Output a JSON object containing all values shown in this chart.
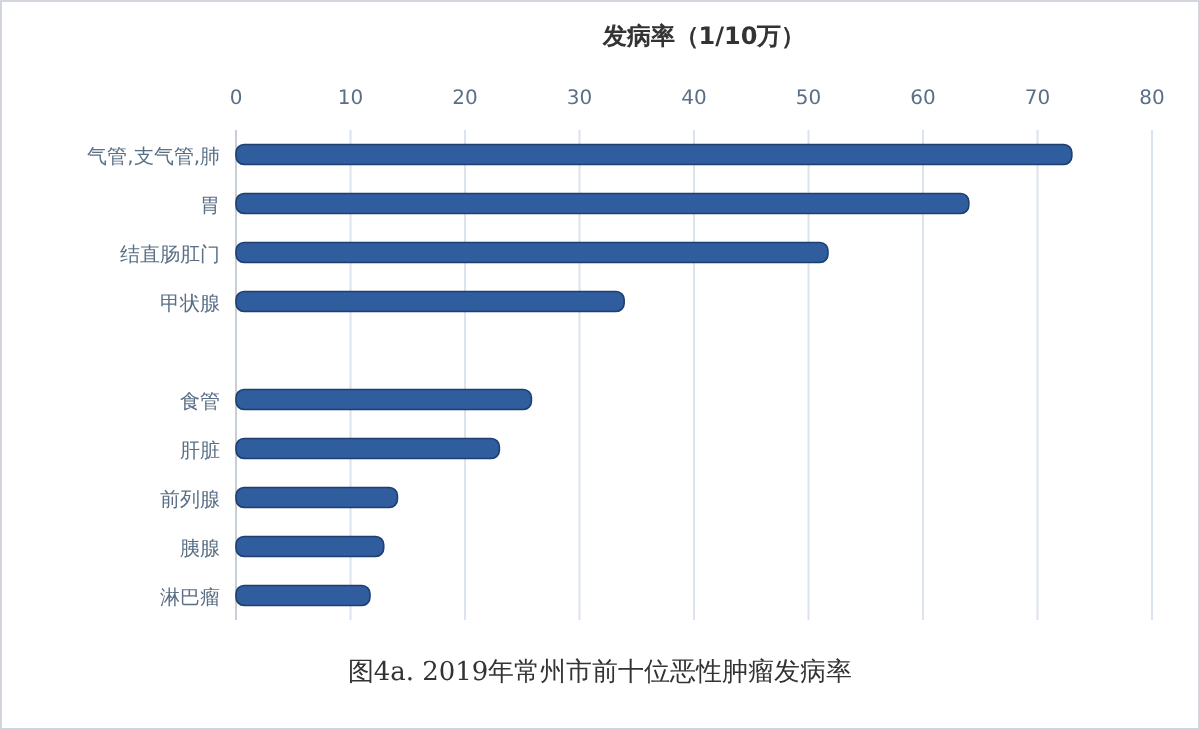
{
  "chart_data": {
    "type": "bar",
    "orientation": "horizontal",
    "xlabel": "发病率（1/10万）",
    "categories": [
      "气管,支气管,肺",
      "胃",
      "结直肠肛门",
      "甲状腺",
      null,
      "食管",
      "肝脏",
      "前列腺",
      "胰腺",
      "淋巴瘤"
    ],
    "values": [
      73,
      64,
      51.7,
      33.9,
      null,
      25.8,
      23,
      14.1,
      12.9,
      11.7
    ],
    "color": "#2f5d9e",
    "xlim": [
      0,
      80
    ],
    "xticks": [
      0,
      10,
      20,
      30,
      40,
      50,
      60,
      70,
      80
    ],
    "grid": "x",
    "annotations": [
      "图4a. 2019年常州市前十位恶性肿瘤发病率"
    ]
  }
}
